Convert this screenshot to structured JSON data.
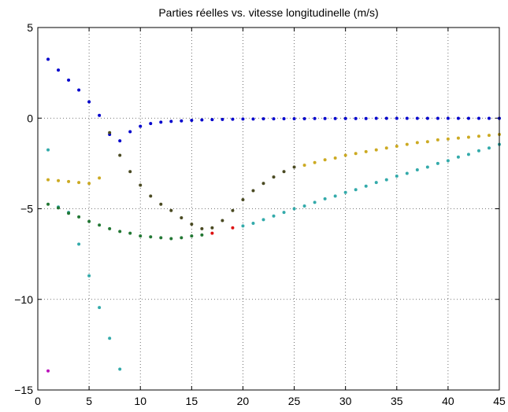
{
  "chart_data": {
    "type": "scatter",
    "title": "Parties réelles vs. vitesse longitudinelle (m/s)",
    "xlabel": "",
    "ylabel": "",
    "xlim": [
      0,
      45
    ],
    "ylim": [
      -15,
      5
    ],
    "xticks": [
      0,
      5,
      10,
      15,
      20,
      25,
      30,
      35,
      40,
      45
    ],
    "yticks": [
      5,
      0,
      -5,
      -10,
      -15
    ],
    "xtick_labels": [
      "0",
      "5",
      "10",
      "15",
      "20",
      "25",
      "30",
      "35",
      "40",
      "45"
    ],
    "ytick_labels": [
      "5",
      "0",
      "−5",
      "−10",
      "−15"
    ],
    "grid": true,
    "series": [
      {
        "color": "#0000cc",
        "points": [
          [
            1,
            3.25
          ],
          [
            2,
            2.65
          ],
          [
            3,
            2.1
          ],
          [
            4,
            1.55
          ],
          [
            5,
            0.9
          ],
          [
            6,
            0.15
          ],
          [
            7,
            -0.9
          ],
          [
            8,
            -1.25
          ],
          [
            9,
            -0.75
          ],
          [
            10,
            -0.45
          ],
          [
            11,
            -0.3
          ],
          [
            12,
            -0.22
          ],
          [
            13,
            -0.18
          ],
          [
            14,
            -0.15
          ],
          [
            15,
            -0.12
          ],
          [
            16,
            -0.1
          ],
          [
            17,
            -0.08
          ],
          [
            18,
            -0.07
          ],
          [
            19,
            -0.06
          ],
          [
            20,
            -0.05
          ],
          [
            21,
            -0.05
          ],
          [
            22,
            -0.04
          ],
          [
            23,
            -0.04
          ],
          [
            24,
            -0.03
          ],
          [
            25,
            -0.03
          ],
          [
            26,
            -0.03
          ],
          [
            27,
            -0.02
          ],
          [
            28,
            -0.02
          ],
          [
            29,
            -0.02
          ],
          [
            30,
            -0.02
          ],
          [
            31,
            -0.02
          ],
          [
            32,
            -0.02
          ],
          [
            33,
            -0.01
          ],
          [
            34,
            -0.01
          ],
          [
            35,
            -0.01
          ],
          [
            36,
            -0.01
          ],
          [
            37,
            -0.01
          ],
          [
            38,
            -0.01
          ],
          [
            39,
            -0.01
          ],
          [
            40,
            -0.01
          ],
          [
            41,
            -0.01
          ],
          [
            42,
            -0.01
          ],
          [
            43,
            -0.01
          ],
          [
            44,
            -0.01
          ],
          [
            45,
            -0.01
          ]
        ]
      },
      {
        "color": "#33aaaa",
        "points": [
          [
            1,
            -1.75
          ],
          [
            2,
            -4.9
          ],
          [
            3,
            -5.2
          ],
          [
            4,
            -6.95
          ],
          [
            5,
            -8.7
          ],
          [
            6,
            -10.45
          ],
          [
            7,
            -12.15
          ],
          [
            8,
            -13.85
          ],
          [
            20,
            -5.95
          ],
          [
            21,
            -5.8
          ],
          [
            22,
            -5.6
          ],
          [
            23,
            -5.4
          ],
          [
            24,
            -5.2
          ],
          [
            25,
            -5.0
          ],
          [
            26,
            -4.85
          ],
          [
            27,
            -4.65
          ],
          [
            28,
            -4.45
          ],
          [
            29,
            -4.3
          ],
          [
            30,
            -4.1
          ],
          [
            31,
            -3.95
          ],
          [
            32,
            -3.75
          ],
          [
            33,
            -3.55
          ],
          [
            34,
            -3.4
          ],
          [
            35,
            -3.2
          ],
          [
            36,
            -3.05
          ],
          [
            37,
            -2.85
          ],
          [
            38,
            -2.7
          ],
          [
            39,
            -2.5
          ],
          [
            40,
            -2.35
          ],
          [
            41,
            -2.15
          ],
          [
            42,
            -2.0
          ],
          [
            43,
            -1.8
          ],
          [
            44,
            -1.65
          ],
          [
            45,
            -1.45
          ]
        ]
      },
      {
        "color": "#ccaa22",
        "points": [
          [
            1,
            -3.4
          ],
          [
            2,
            -3.45
          ],
          [
            3,
            -3.5
          ],
          [
            4,
            -3.55
          ],
          [
            5,
            -3.6
          ],
          [
            6,
            -3.3
          ],
          [
            26,
            -2.6
          ],
          [
            27,
            -2.45
          ],
          [
            28,
            -2.3
          ],
          [
            29,
            -2.2
          ],
          [
            30,
            -2.05
          ],
          [
            31,
            -1.95
          ],
          [
            32,
            -1.85
          ],
          [
            33,
            -1.75
          ],
          [
            34,
            -1.65
          ],
          [
            35,
            -1.55
          ],
          [
            36,
            -1.45
          ],
          [
            37,
            -1.35
          ],
          [
            38,
            -1.3
          ],
          [
            39,
            -1.2
          ],
          [
            40,
            -1.15
          ],
          [
            41,
            -1.1
          ],
          [
            42,
            -1.05
          ],
          [
            43,
            -1.0
          ],
          [
            44,
            -0.95
          ],
          [
            45,
            -0.9
          ]
        ]
      },
      {
        "color": "#4a4a22",
        "points": [
          [
            7,
            -0.8
          ],
          [
            8,
            -2.05
          ],
          [
            9,
            -2.95
          ],
          [
            10,
            -3.7
          ],
          [
            11,
            -4.3
          ],
          [
            12,
            -4.75
          ],
          [
            13,
            -5.1
          ],
          [
            14,
            -5.5
          ],
          [
            15,
            -5.85
          ],
          [
            16,
            -6.1
          ],
          [
            17,
            -6.05
          ],
          [
            18,
            -5.65
          ],
          [
            19,
            -5.1
          ],
          [
            20,
            -4.5
          ],
          [
            21,
            -4.0
          ],
          [
            22,
            -3.6
          ],
          [
            23,
            -3.25
          ],
          [
            24,
            -2.95
          ],
          [
            25,
            -2.7
          ]
        ]
      },
      {
        "color": "#227733",
        "points": [
          [
            1,
            -4.75
          ],
          [
            2,
            -4.95
          ],
          [
            3,
            -5.25
          ],
          [
            4,
            -5.45
          ],
          [
            5,
            -5.7
          ],
          [
            6,
            -5.9
          ],
          [
            7,
            -6.1
          ],
          [
            8,
            -6.25
          ],
          [
            9,
            -6.35
          ],
          [
            10,
            -6.5
          ],
          [
            11,
            -6.55
          ],
          [
            12,
            -6.6
          ],
          [
            13,
            -6.65
          ],
          [
            14,
            -6.6
          ],
          [
            15,
            -6.5
          ],
          [
            16,
            -6.45
          ]
        ]
      },
      {
        "color": "#dd1111",
        "points": [
          [
            17,
            -6.35
          ],
          [
            19,
            -6.05
          ]
        ]
      },
      {
        "color": "#bb11bb",
        "points": [
          [
            1,
            -13.95
          ]
        ]
      }
    ]
  }
}
